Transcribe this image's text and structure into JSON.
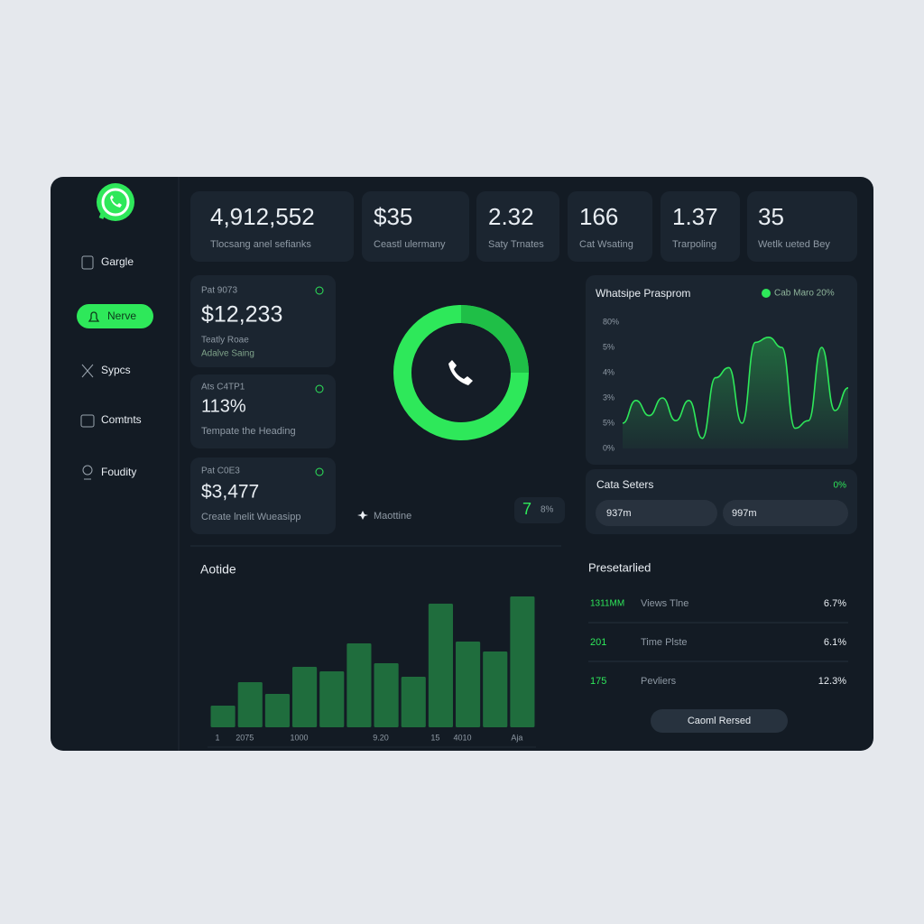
{
  "sidebar": {
    "nav": [
      "Gargle",
      "Nerve",
      "Sypcs",
      "Comtnts",
      "Foudity"
    ]
  },
  "stats": [
    {
      "value": "4,912,552",
      "label": "Tlocsang anel sefianks"
    },
    {
      "value": "$35",
      "label": "Ceastl ulermany"
    },
    {
      "value": "2.32",
      "label": "Saty Trnates"
    },
    {
      "value": "166",
      "label": "Cat Wsating"
    },
    {
      "value": "1.37",
      "label": "Trarpoling"
    },
    {
      "value": "35",
      "label": "Wetlk ueted Bey"
    }
  ],
  "mini_cards": [
    {
      "caption": "Pat 9073",
      "value": "$12,233",
      "lines": [
        "Teatly Roae",
        "Adalve Saing"
      ]
    },
    {
      "caption": "Ats C4TP1",
      "value": "113%",
      "lines": [
        "Tempate the Heading"
      ]
    },
    {
      "caption": "Pat C0E3",
      "value": "$3,477",
      "lines": [
        "Create lnelit Wueasipp"
      ]
    }
  ],
  "call_widget": {
    "label": "Maottine",
    "count": "7",
    "rate": "8%"
  },
  "data_card": {
    "title": "Cata Seters",
    "status": "0%",
    "pills": [
      "937m",
      "997m"
    ]
  },
  "table": {
    "title": "Presetarlied",
    "rows": [
      [
        "1311MM",
        "Views Tlne",
        "6.7%"
      ],
      [
        "201",
        "Time Plste",
        "6.1%"
      ],
      [
        "175",
        "Pevliers",
        "12.3%"
      ]
    ]
  },
  "button": "Caoml Rersed",
  "chart_data": [
    {
      "type": "line",
      "title": "Whatsipe Prasprom",
      "categories": [
        null,
        null,
        null,
        null,
        null,
        null,
        null,
        null,
        null,
        null,
        null,
        null,
        null,
        null,
        null,
        null,
        null,
        null
      ],
      "series": [
        {
          "name": "Cab Maro 20%",
          "color": "#2ee85a",
          "values": [
            1.0,
            1.9,
            1.3,
            2.0,
            1.1,
            1.9,
            0.4,
            2.8,
            3.2,
            1.0,
            4.2,
            4.4,
            4.0,
            0.8,
            1.1,
            4.0,
            1.5,
            2.4
          ]
        }
      ],
      "ylim": [
        0,
        5
      ],
      "yticks": [
        {
          "value": 0,
          "label": "0%"
        },
        {
          "value": 1,
          "label": "5%"
        },
        {
          "value": 2,
          "label": "3%"
        },
        {
          "value": 3,
          "label": "4%"
        },
        {
          "value": 4,
          "label": "5%"
        },
        {
          "value": 5,
          "label": "80%"
        }
      ]
    },
    {
      "type": "bar",
      "title": "Aotide",
      "categories": [
        "1",
        "2075",
        null,
        "1000",
        null,
        null,
        "9.20",
        null,
        "15",
        "4010",
        null,
        "Aja"
      ],
      "values": [
        24,
        50,
        37,
        67,
        62,
        93,
        71,
        56,
        137,
        95,
        84,
        145
      ],
      "color": "#1f6d3d",
      "ylim": [
        0,
        150
      ]
    }
  ]
}
